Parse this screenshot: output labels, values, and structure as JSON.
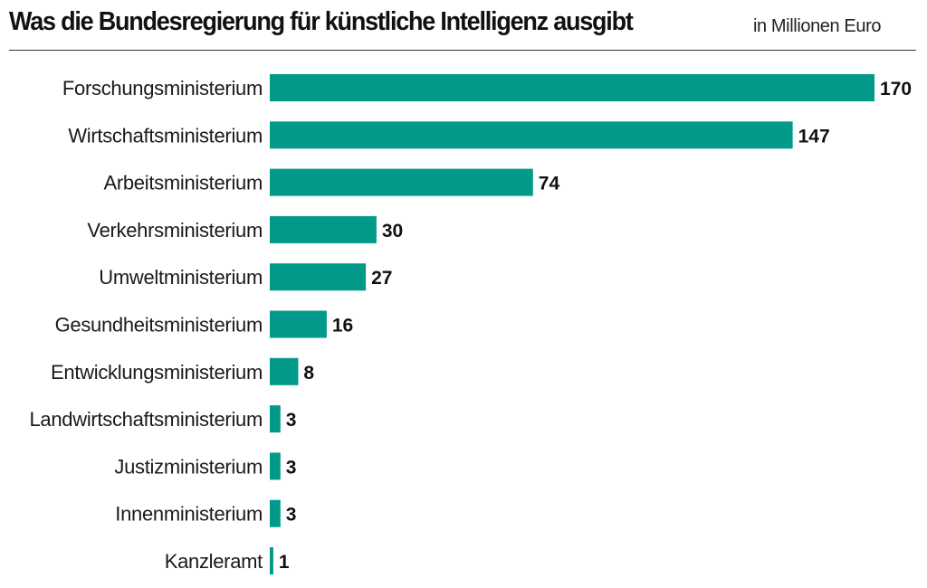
{
  "header": {
    "title": "Was die Bundesregierung für künstliche Intelligenz ausgibt",
    "unit": "in Millionen Euro"
  },
  "chart_data": {
    "type": "bar",
    "orientation": "horizontal",
    "title": "Was die Bundesregierung für künstliche Intelligenz ausgibt",
    "subtitle": "in Millionen Euro",
    "categories": [
      "Forschungsministerium",
      "Wirtschaftsministerium",
      "Arbeitsministerium",
      "Verkehrsministerium",
      "Umweltministerium",
      "Gesundheitsministerium",
      "Entwicklungsministerium",
      "Landwirtschaftsministerium",
      "Justizministerium",
      "Innenministerium",
      "Kanzleramt"
    ],
    "values": [
      170,
      147,
      74,
      30,
      27,
      16,
      8,
      3,
      3,
      3,
      1
    ],
    "value_labels": [
      "170",
      "147",
      "74",
      "30",
      "27",
      "16",
      "8",
      "3",
      "3",
      "3",
      "1"
    ],
    "xlim": [
      0,
      170
    ],
    "bar_color": "#00998a",
    "grid": false,
    "legend": "none"
  }
}
